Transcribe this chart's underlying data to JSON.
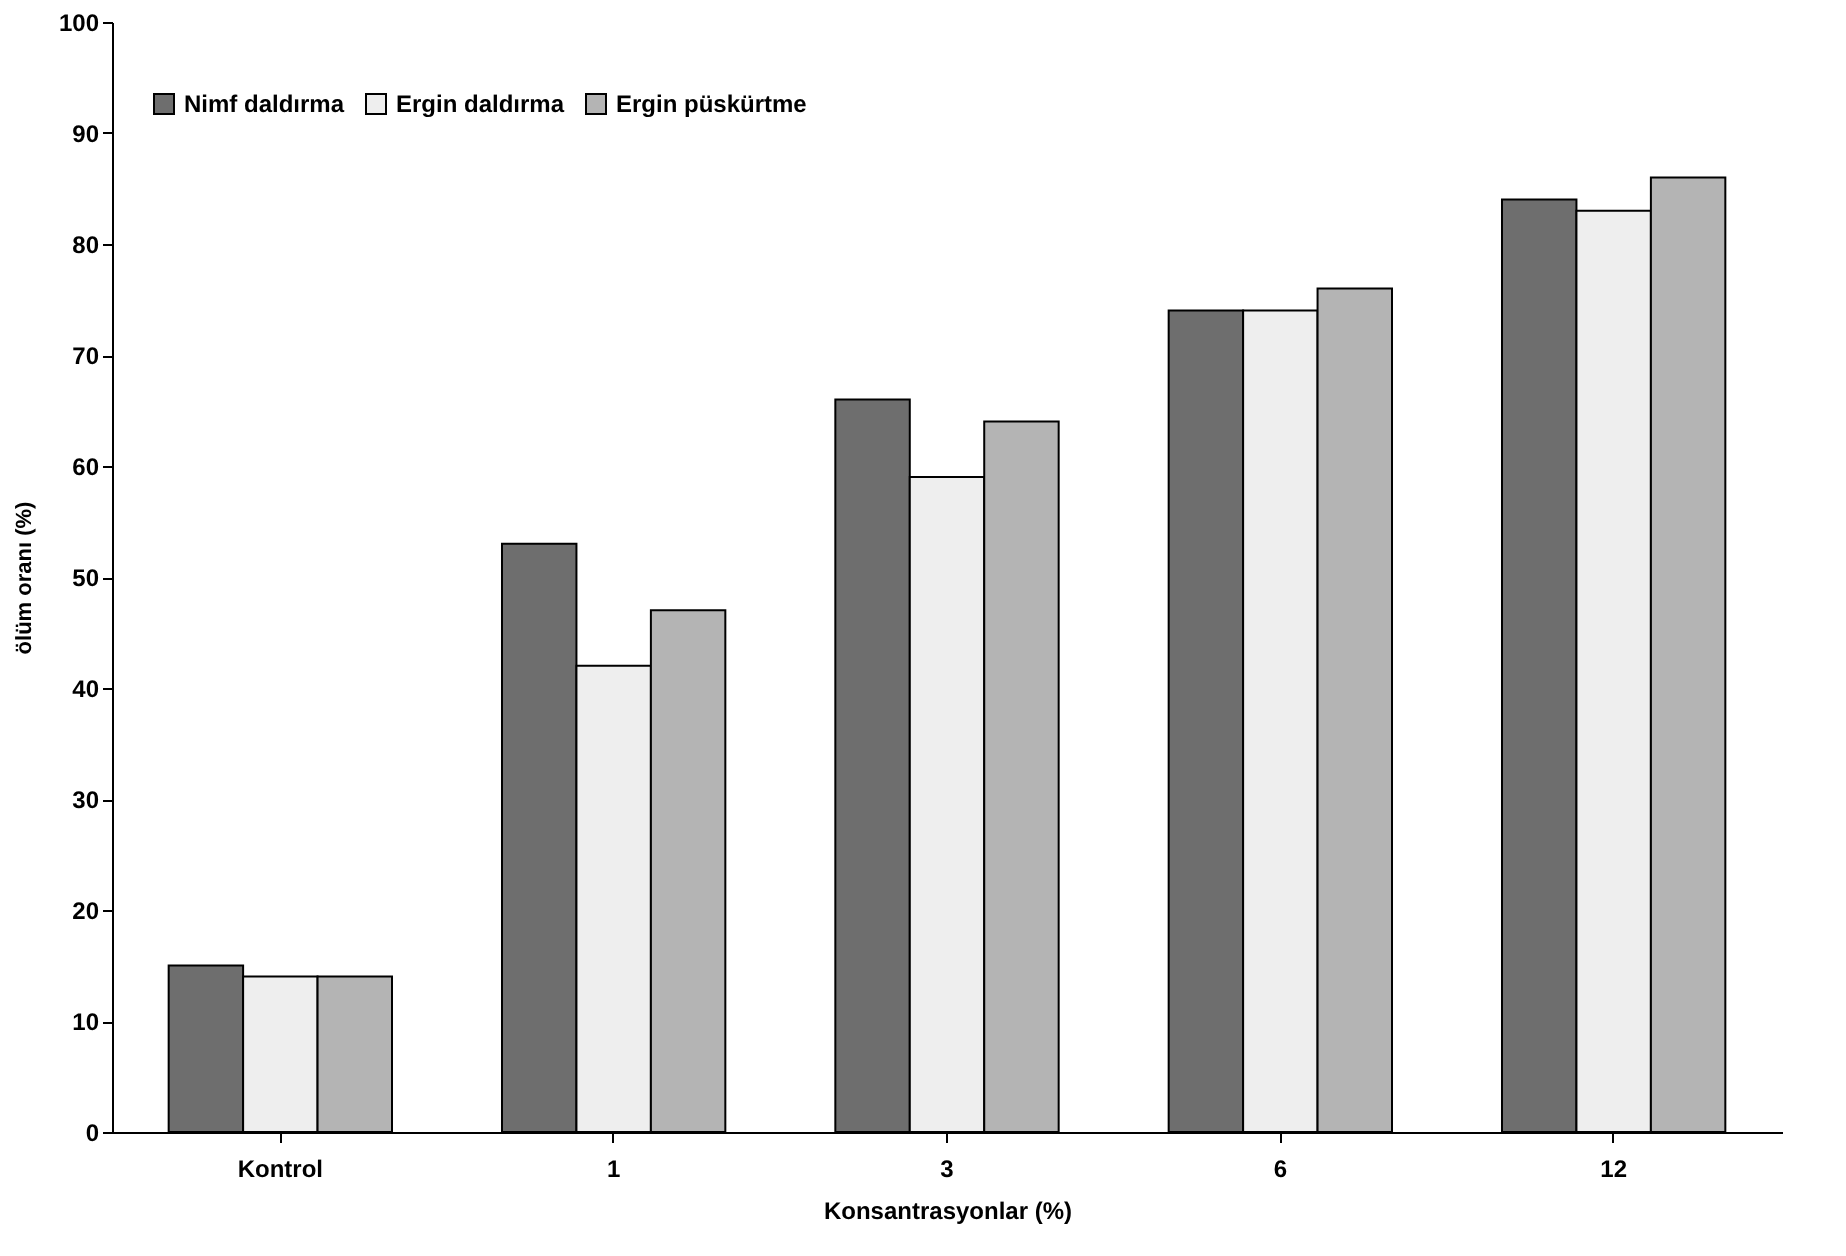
{
  "chart_data": {
    "type": "bar",
    "xlabel": "Konsantrasyonlar (%)",
    "ylabel": "ölüm oranı (%)",
    "categories": [
      "Kontrol",
      "1",
      "3",
      "6",
      "12"
    ],
    "series": [
      {
        "name": "Nimf daldırma",
        "color": "#6e6e6e",
        "values": [
          15,
          53,
          66,
          74,
          84
        ]
      },
      {
        "name": "Ergin daldırma",
        "color": "#eeeeee",
        "values": [
          14,
          42,
          59,
          74,
          83
        ]
      },
      {
        "name": "Ergin püskürtme",
        "color": "#b4b4b4",
        "values": [
          14,
          47,
          64,
          76,
          86
        ]
      }
    ],
    "ylim": [
      0,
      100
    ],
    "yticks": [
      0,
      10,
      20,
      30,
      40,
      50,
      60,
      70,
      80,
      90,
      100
    ],
    "grid": false,
    "legend": "top left"
  }
}
